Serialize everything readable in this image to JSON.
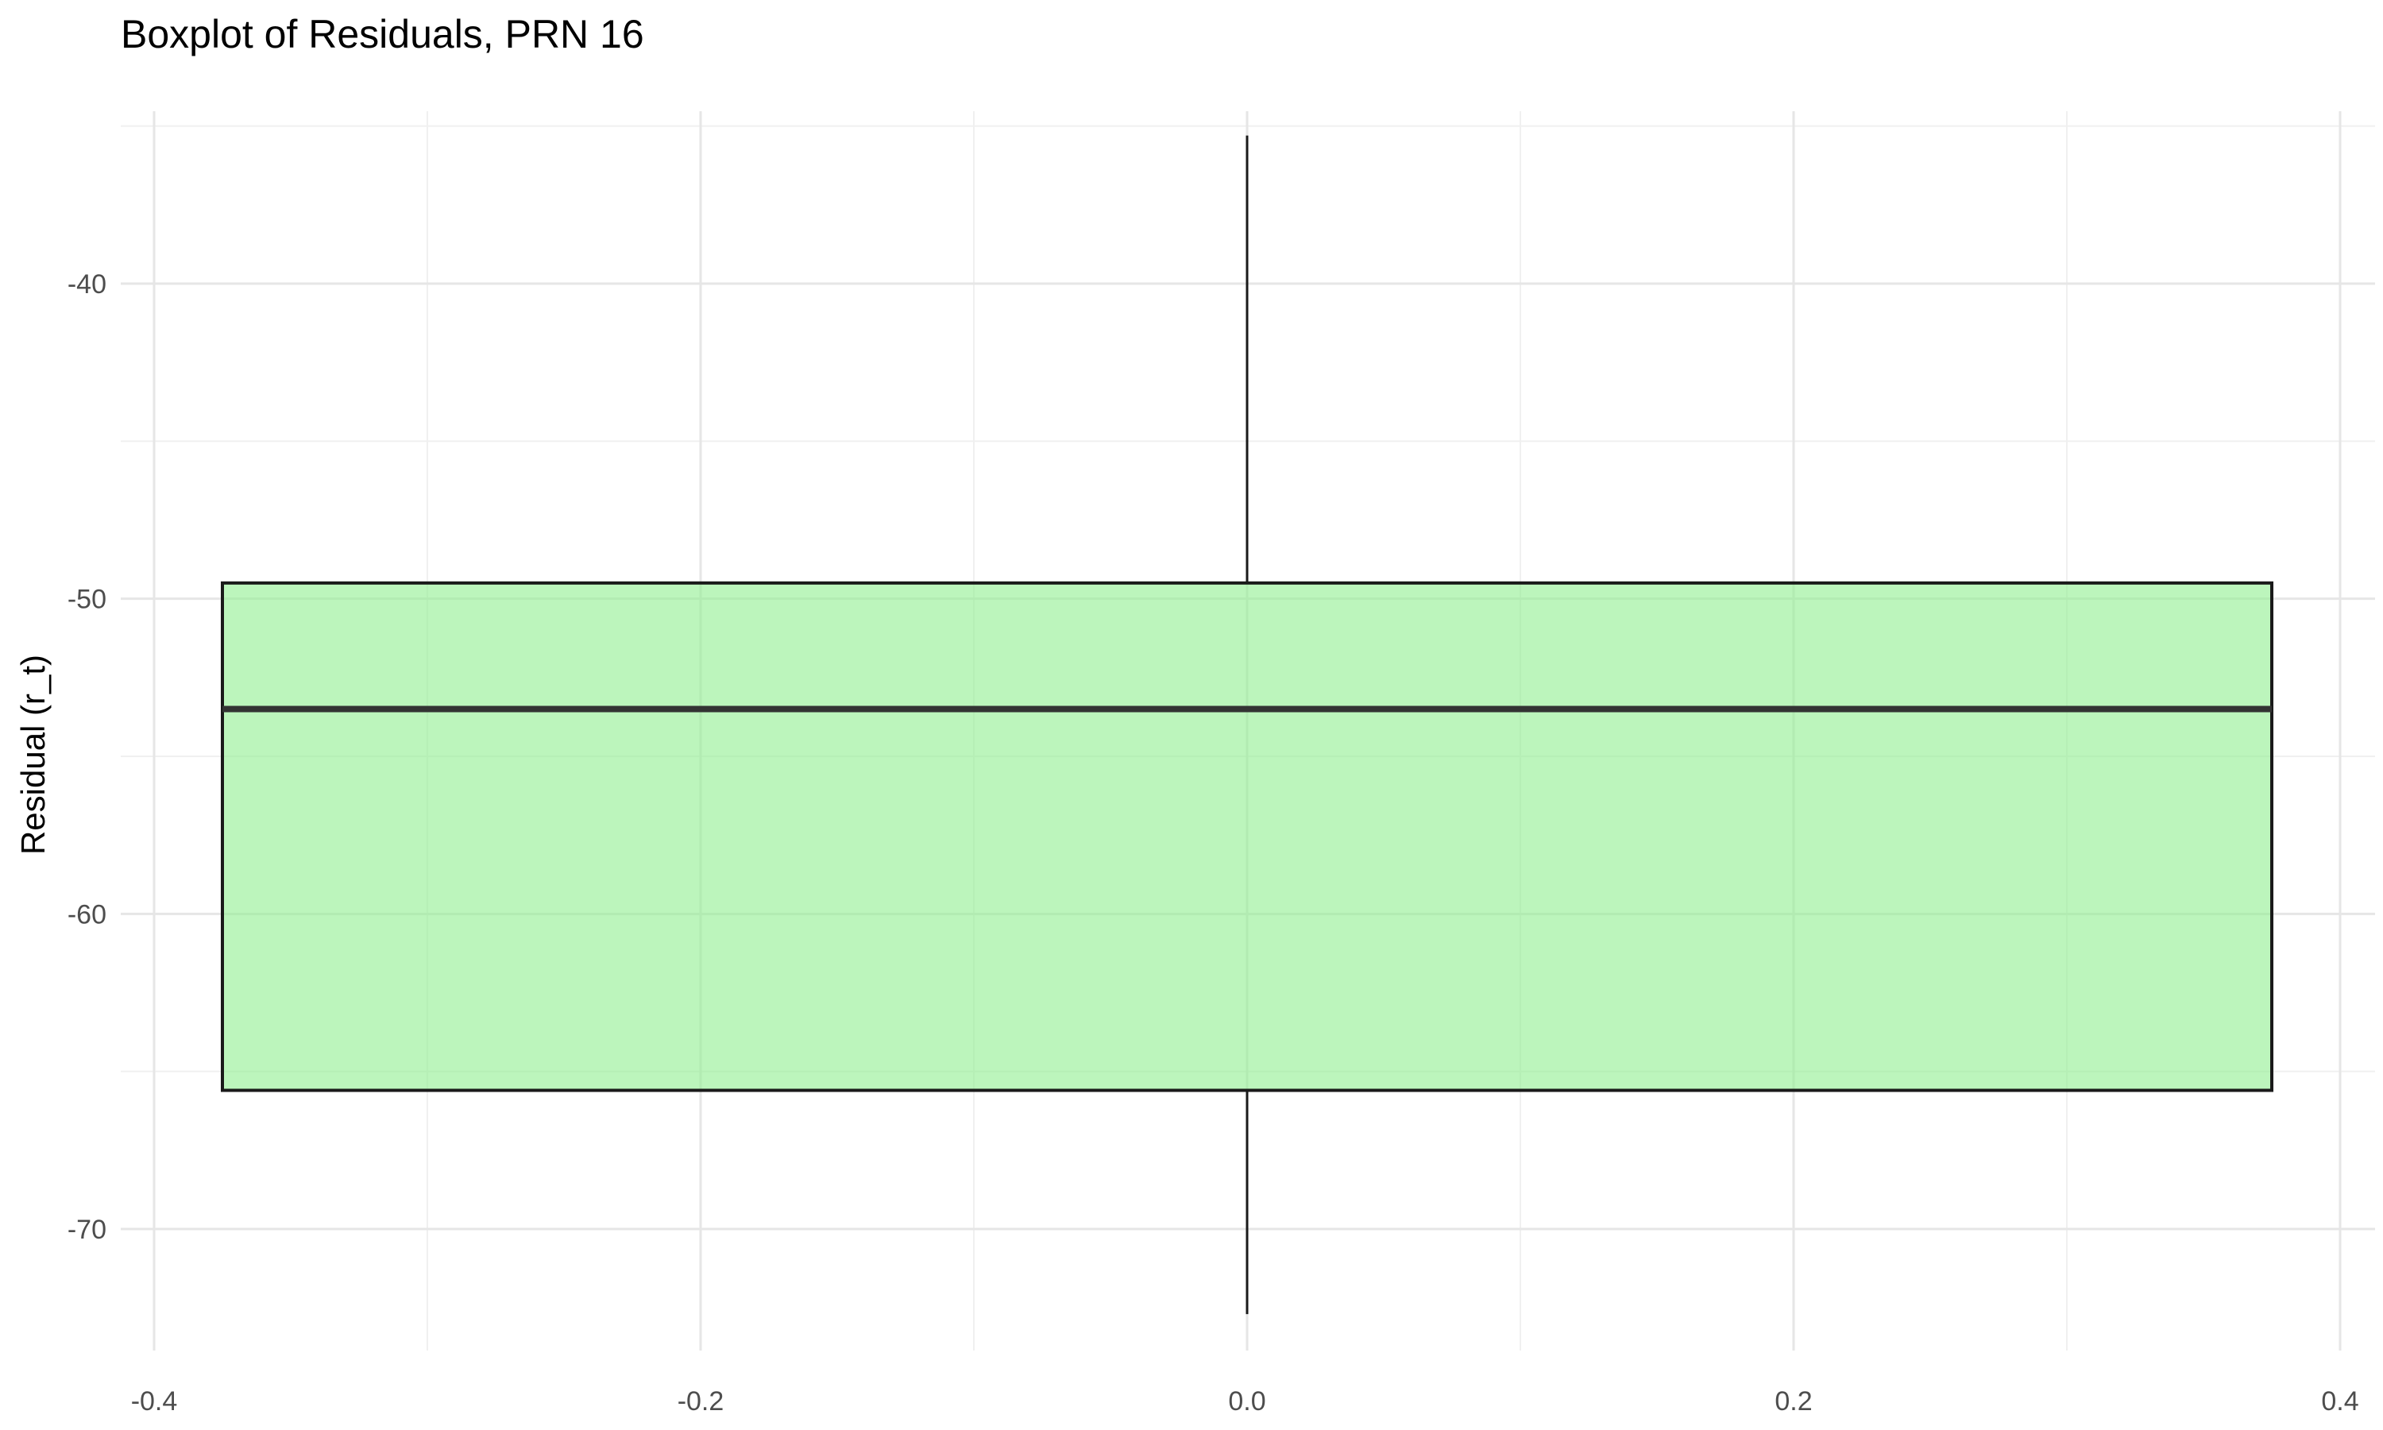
{
  "chart_data": {
    "type": "boxplot",
    "title": "Boxplot of Residuals, PRN 16",
    "xlabel": "",
    "ylabel": "Residual (r_t)",
    "xlim": [
      -0.4,
      0.4
    ],
    "ylim": [
      -74,
      -34
    ],
    "x_ticks": [
      -0.4,
      -0.2,
      0.0,
      0.2,
      0.4
    ],
    "x_tick_labels": [
      "-0.4",
      "-0.2",
      "0.0",
      "0.2",
      "0.4"
    ],
    "y_ticks": [
      -70,
      -60,
      -50,
      -40
    ],
    "y_tick_labels": [
      "-70",
      "-60",
      "-50",
      "-40"
    ],
    "grid": true,
    "box": {
      "x_left": -0.375,
      "x_right": 0.375,
      "whisker_x": 0.0,
      "min": -72.7,
      "q1": -65.6,
      "median": -53.5,
      "q3": -49.5,
      "max": -35.3
    },
    "colors": {
      "box_fill": "#90EE90",
      "box_fill_opacity": 0.6,
      "box_stroke": "#1a1a1a",
      "median_stroke": "#333333",
      "grid_major": "#e6e6e6",
      "grid_minor": "#f0f0f0"
    }
  }
}
